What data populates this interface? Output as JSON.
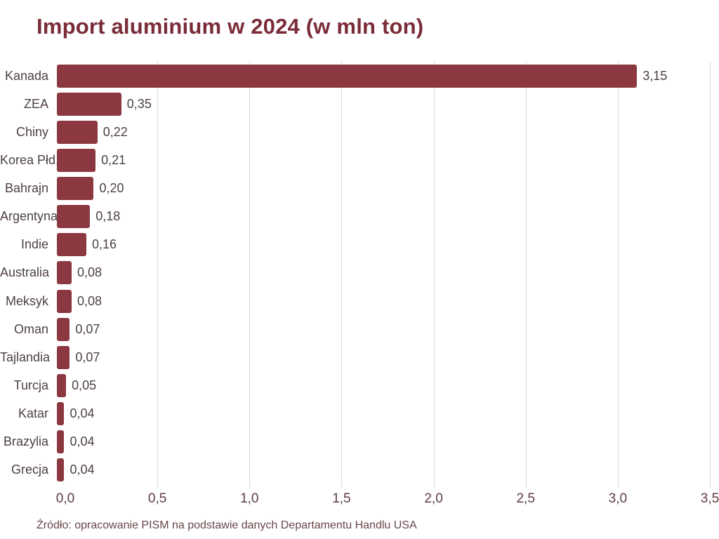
{
  "chart": {
    "title": "Import aluminium w 2024 (w mln ton)",
    "source": "Źródło: opracowanie PISM na podstawie danych Departamentu Handlu USA"
  },
  "chart_data": {
    "type": "bar",
    "orientation": "horizontal",
    "title": "Import aluminium w 2024 (w mln ton)",
    "categories": [
      "Kanada",
      "ZEA",
      "Chiny",
      "Korea Płd.",
      "Bahrajn",
      "Argentyna",
      "Indie",
      "Australia",
      "Meksyk",
      "Oman",
      "Tajlandia",
      "Turcja",
      "Katar",
      "Brazylia",
      "Grecja"
    ],
    "values": [
      3.15,
      0.35,
      0.22,
      0.21,
      0.2,
      0.18,
      0.16,
      0.08,
      0.08,
      0.07,
      0.07,
      0.05,
      0.04,
      0.04,
      0.04
    ],
    "value_labels": [
      "3,15",
      "0,35",
      "0,22",
      "0,21",
      "0,20",
      "0,18",
      "0,16",
      "0,08",
      "0,08",
      "0,07",
      "0,07",
      "0,05",
      "0,04",
      "0,04",
      "0,04"
    ],
    "xlabel": "",
    "ylabel": "",
    "xlim": [
      0,
      3.5
    ],
    "x_ticks": [
      0,
      0.5,
      1.0,
      1.5,
      2.0,
      2.5,
      3.0,
      3.5
    ],
    "x_tick_labels": [
      "0,0",
      "0,5",
      "1,0",
      "1,5",
      "2,0",
      "2,5",
      "3,0",
      "3,5"
    ],
    "grid": "vertical-only",
    "legend": "none",
    "source": "Źródło: opracowanie PISM na podstawie danych Departamentu Handlu USA"
  },
  "colors": {
    "bar": "#8b3841",
    "title": "#7a2c38",
    "label": "#4d4043",
    "tick": "#5e3c43",
    "source_text": "#69464b",
    "gridline": "#d9d9d9",
    "background": "#ffffff"
  }
}
